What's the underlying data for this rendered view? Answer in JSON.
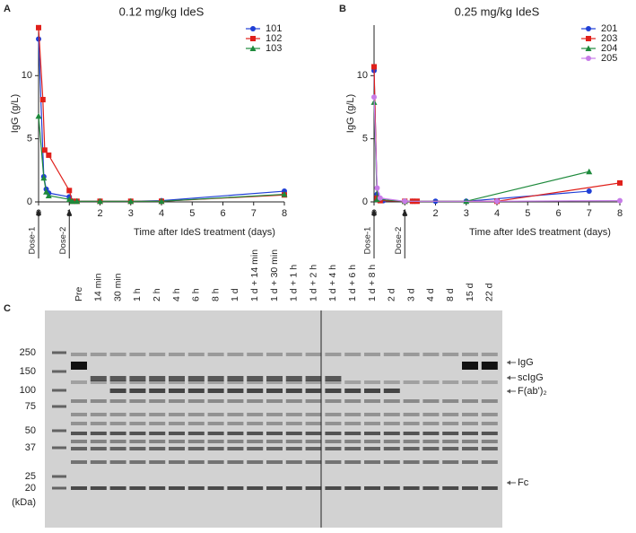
{
  "chart_data": [
    {
      "type": "line",
      "panel": "A",
      "title": "0.12 mg/kg IdeS",
      "x_label": "Time after IdeS treatment (days)",
      "y_label": "IgG (g/L)",
      "xlim": [
        0,
        8
      ],
      "xticks": [
        0,
        1,
        2,
        3,
        4,
        5,
        6,
        7,
        8
      ],
      "ylim": [
        0,
        14
      ],
      "yticks": [
        0,
        5,
        10
      ],
      "legend": "upper right",
      "annotations": [
        {
          "text": "Dose-1",
          "x": 0
        },
        {
          "text": "Dose-2",
          "x": 1
        }
      ],
      "series": [
        {
          "name": "101",
          "color": "#1f3fd6",
          "marker": "circle",
          "x": [
            0,
            0.17,
            0.25,
            0.33,
            1,
            1.1,
            1.25,
            2,
            3,
            4,
            8
          ],
          "values": [
            12.9,
            2.0,
            1.0,
            0.7,
            0.4,
            0.05,
            0.05,
            0.05,
            0.05,
            0.1,
            0.85
          ]
        },
        {
          "name": "102",
          "color": "#e0201b",
          "marker": "square",
          "x": [
            0,
            0.14,
            0.2,
            0.33,
            1,
            1.1,
            1.25,
            2,
            3,
            4,
            8
          ],
          "values": [
            13.8,
            8.1,
            4.1,
            3.7,
            0.9,
            0.05,
            0.05,
            0.05,
            0.05,
            0.05,
            0.55
          ]
        },
        {
          "name": "103",
          "color": "#1e8a3c",
          "marker": "triangle",
          "x": [
            0,
            0.17,
            0.25,
            0.33,
            1,
            1.1,
            1.25,
            2,
            3,
            4,
            8
          ],
          "values": [
            6.8,
            1.9,
            0.8,
            0.5,
            0.2,
            0.05,
            0.05,
            0.05,
            0.05,
            0.05,
            0.6
          ]
        }
      ]
    },
    {
      "type": "line",
      "panel": "B",
      "title": "0.25 mg/kg IdeS",
      "x_label": "Time after IdeS treatment (days)",
      "y_label": "IgG (g/L)",
      "xlim": [
        0,
        8
      ],
      "xticks": [
        0,
        1,
        2,
        3,
        4,
        5,
        6,
        7,
        8
      ],
      "ylim": [
        0,
        14
      ],
      "yticks": [
        0,
        5,
        10
      ],
      "legend": "upper right",
      "annotations": [
        {
          "text": "Dose-1",
          "x": 0
        },
        {
          "text": "Dose-2",
          "x": 1
        }
      ],
      "series": [
        {
          "name": "201",
          "color": "#1f3fd6",
          "marker": "circle",
          "x": [
            0,
            0.1,
            0.2,
            0.3,
            1,
            1.25,
            2,
            3,
            7
          ],
          "values": [
            10.4,
            0.6,
            0.2,
            0.1,
            0.05,
            0.05,
            0.05,
            0.05,
            0.85
          ]
        },
        {
          "name": "203",
          "color": "#e0201b",
          "marker": "square",
          "x": [
            0,
            0.1,
            0.2,
            1,
            1.25,
            1.4,
            4,
            8
          ],
          "values": [
            10.7,
            0.3,
            0.1,
            0.05,
            0.05,
            0.05,
            0.05,
            1.5
          ]
        },
        {
          "name": "204",
          "color": "#1e8a3c",
          "marker": "triangle",
          "x": [
            0,
            0.1,
            1,
            3,
            7
          ],
          "values": [
            7.9,
            0.2,
            0.05,
            0.05,
            2.4
          ]
        },
        {
          "name": "205",
          "color": "#c77ce8",
          "marker": "circle",
          "x": [
            0,
            0.1,
            0.2,
            1,
            4,
            8
          ],
          "values": [
            8.3,
            1.1,
            0.3,
            0.05,
            0.05,
            0.1
          ]
        }
      ]
    }
  ],
  "gel": {
    "panel": "C",
    "lanes": [
      "Pre",
      "14 min",
      "30 min",
      "1 h",
      "2 h",
      "4 h",
      "6 h",
      "8 h",
      "1 d",
      "1 d + 14 min",
      "1 d + 30 min",
      "1 d + 1 h",
      "1 d + 2 h",
      "1 d + 4 h",
      "1 d + 6 h",
      "1 d + 8 h",
      "2 d",
      "3 d",
      "4 d",
      "8 d",
      "15 d",
      "22 d"
    ],
    "markers": [
      250,
      150,
      100,
      75,
      50,
      37,
      25,
      20
    ],
    "marker_unit": "(kDa)",
    "bands": [
      "IgG",
      "scIgG",
      "F(ab')₂",
      "Fc"
    ]
  }
}
